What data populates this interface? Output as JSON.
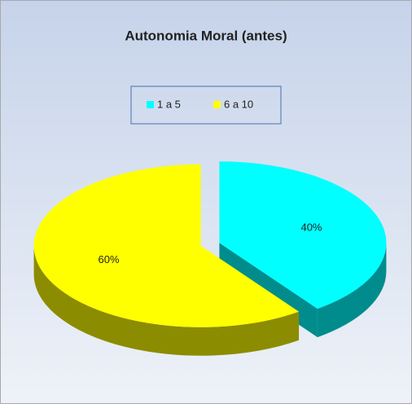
{
  "chart_data": {
    "type": "pie3d",
    "title": "Autonomia Moral  (antes)",
    "categories": [
      "1 a 5",
      "6 a 10"
    ],
    "values": [
      40,
      60
    ],
    "value_labels": [
      "40%",
      "60%"
    ],
    "colors": [
      "#00ffff",
      "#ffff00"
    ],
    "legend": "top"
  }
}
